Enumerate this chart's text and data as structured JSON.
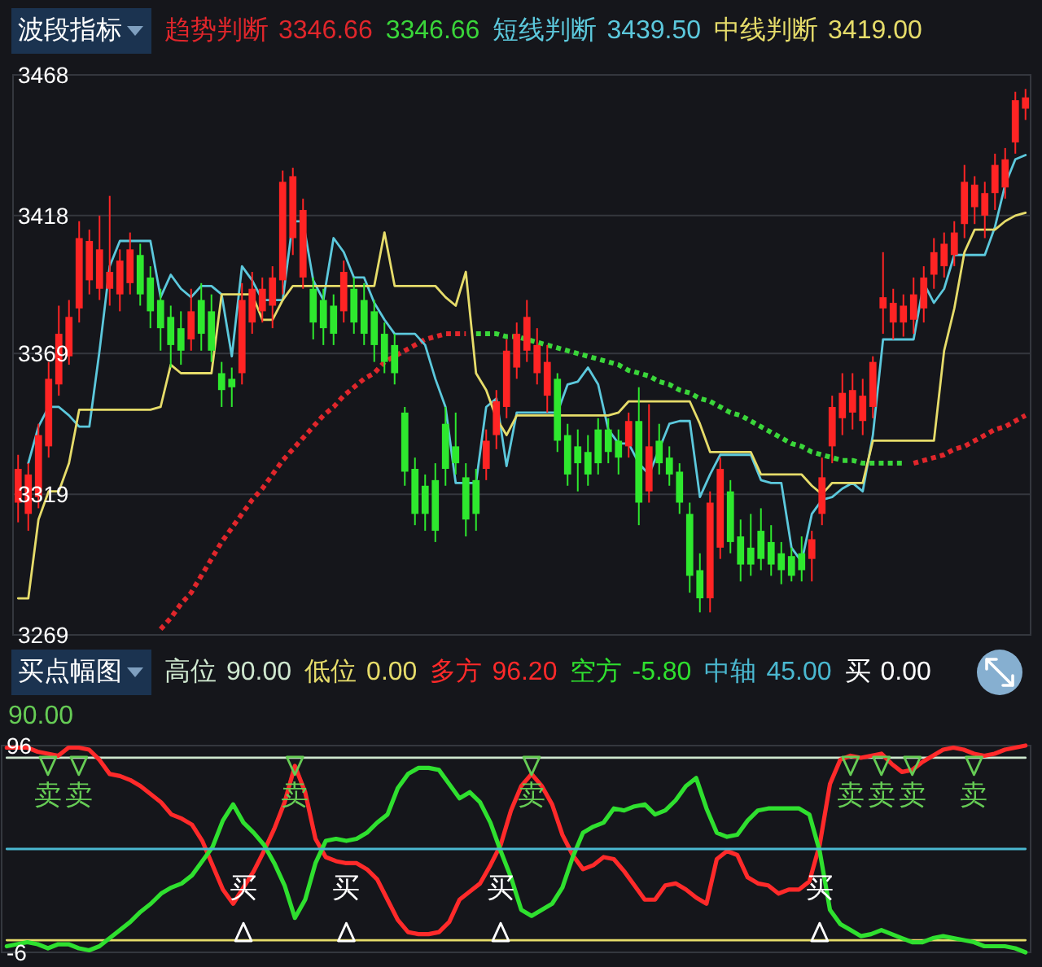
{
  "chart_data": [
    {
      "type": "candlestick",
      "title": "波段指标",
      "categories": [
        null,
        null,
        null,
        null,
        null,
        null,
        null,
        null,
        null,
        null,
        null,
        null,
        null,
        null,
        null,
        null,
        null,
        null,
        null,
        null,
        null,
        null,
        null,
        null,
        null,
        null,
        null,
        null,
        null,
        null,
        null,
        null,
        null,
        null,
        null,
        null,
        null,
        null,
        null,
        null,
        null,
        null,
        null,
        null,
        null,
        null,
        null,
        null,
        null,
        null,
        null,
        null,
        null,
        null,
        null,
        null,
        null,
        null,
        null,
        null,
        null,
        null,
        null,
        null,
        null,
        null,
        null,
        null,
        null,
        null,
        null,
        null,
        null,
        null,
        null,
        null,
        null,
        null,
        null,
        null,
        null,
        null,
        null,
        null,
        null,
        null,
        null,
        null,
        null,
        null,
        null,
        null,
        null,
        null,
        null,
        null,
        null,
        null,
        null,
        null
      ],
      "ohlc": [
        [
          3316,
          3333,
          3309,
          3328
        ],
        [
          3312,
          3330,
          3306,
          3326
        ],
        [
          3318,
          3344,
          3314,
          3340
        ],
        [
          3336,
          3366,
          3332,
          3360
        ],
        [
          3358,
          3386,
          3354,
          3376
        ],
        [
          3368,
          3388,
          3365,
          3382
        ],
        [
          3385,
          3416,
          3380,
          3410
        ],
        [
          3395,
          3413,
          3390,
          3409
        ],
        [
          3392,
          3418,
          3388,
          3406
        ],
        [
          3392,
          3425,
          3386,
          3398
        ],
        [
          3390,
          3406,
          3384,
          3402
        ],
        [
          3394,
          3412,
          3390,
          3406
        ],
        [
          3404,
          3408,
          3386,
          3390
        ],
        [
          3396,
          3400,
          3378,
          3384
        ],
        [
          3388,
          3392,
          3370,
          3378
        ],
        [
          3382,
          3386,
          3364,
          3372
        ],
        [
          3378,
          3384,
          3365,
          3370
        ],
        [
          3374,
          3392,
          3370,
          3384
        ],
        [
          3388,
          3394,
          3370,
          3376
        ],
        [
          3384,
          3390,
          3366,
          3370
        ],
        [
          3362,
          3366,
          3350,
          3356
        ],
        [
          3360,
          3364,
          3350,
          3357
        ],
        [
          3362,
          3394,
          3358,
          3388
        ],
        [
          3380,
          3398,
          3376,
          3392
        ],
        [
          3384,
          3396,
          3380,
          3392
        ],
        [
          3386,
          3400,
          3378,
          3396
        ],
        [
          3395,
          3434,
          3390,
          3430
        ],
        [
          3410,
          3435,
          3404,
          3432
        ],
        [
          3396,
          3424,
          3392,
          3420
        ],
        [
          3392,
          3396,
          3374,
          3380
        ],
        [
          3388,
          3392,
          3372,
          3378
        ],
        [
          3386,
          3390,
          3372,
          3376
        ],
        [
          3384,
          3402,
          3380,
          3398
        ],
        [
          3392,
          3396,
          3376,
          3380
        ],
        [
          3388,
          3394,
          3372,
          3376
        ],
        [
          3384,
          3388,
          3366,
          3372
        ],
        [
          3376,
          3380,
          3362,
          3366
        ],
        [
          3372,
          3376,
          3358,
          3362
        ],
        [
          3348,
          3350,
          3322,
          3327
        ],
        [
          3328,
          3332,
          3308,
          3312
        ],
        [
          3322,
          3326,
          3306,
          3312
        ],
        [
          3324,
          3330,
          3302,
          3306
        ],
        [
          3344,
          3350,
          3322,
          3328
        ],
        [
          3336,
          3348,
          3326,
          3330
        ],
        [
          3325,
          3330,
          3304,
          3310
        ],
        [
          3324,
          3328,
          3306,
          3312
        ],
        [
          3328,
          3342,
          3324,
          3338
        ],
        [
          3340,
          3356,
          3335,
          3352
        ],
        [
          3350,
          3374,
          3346,
          3370
        ],
        [
          3364,
          3380,
          3360,
          3376
        ],
        [
          3370,
          3388,
          3366,
          3382
        ],
        [
          3362,
          3378,
          3358,
          3372
        ],
        [
          3354,
          3372,
          3348,
          3366
        ],
        [
          3360,
          3362,
          3334,
          3338
        ],
        [
          3340,
          3344,
          3322,
          3326
        ],
        [
          3336,
          3342,
          3320,
          3330
        ],
        [
          3334,
          3340,
          3322,
          3326
        ],
        [
          3342,
          3346,
          3326,
          3330
        ],
        [
          3342,
          3346,
          3330,
          3334
        ],
        [
          3338,
          3342,
          3326,
          3332
        ],
        [
          3336,
          3348,
          3332,
          3345
        ],
        [
          3345,
          3357,
          3308,
          3316
        ],
        [
          3320,
          3351,
          3316,
          3336
        ],
        [
          3338,
          3344,
          3326,
          3330
        ],
        [
          3332,
          3336,
          3322,
          3326
        ],
        [
          3327,
          3330,
          3312,
          3316
        ],
        [
          3312,
          3316,
          3284,
          3290
        ],
        [
          3292,
          3298,
          3277,
          3282
        ],
        [
          3282,
          3320,
          3277,
          3316
        ],
        [
          3300,
          3332,
          3296,
          3328
        ],
        [
          3320,
          3324,
          3298,
          3302
        ],
        [
          3304,
          3310,
          3288,
          3294
        ],
        [
          3300,
          3312,
          3290,
          3294
        ],
        [
          3306,
          3314,
          3292,
          3296
        ],
        [
          3302,
          3308,
          3290,
          3294
        ],
        [
          3298,
          3302,
          3287,
          3292
        ],
        [
          3297,
          3300,
          3288,
          3290
        ],
        [
          3298,
          3304,
          3288,
          3292
        ],
        [
          3296,
          3306,
          3288,
          3303
        ],
        [
          3312,
          3332,
          3308,
          3325
        ],
        [
          3336,
          3354,
          3330,
          3350
        ],
        [
          3346,
          3362,
          3340,
          3355
        ],
        [
          3348,
          3362,
          3342,
          3356
        ],
        [
          3345,
          3360,
          3340,
          3354
        ],
        [
          3350,
          3368,
          3346,
          3366
        ],
        [
          3385,
          3405,
          3376,
          3389
        ],
        [
          3380,
          3392,
          3374,
          3387
        ],
        [
          3380,
          3390,
          3375,
          3386
        ],
        [
          3381,
          3396,
          3376,
          3390
        ],
        [
          3385,
          3400,
          3380,
          3396
        ],
        [
          3397,
          3410,
          3392,
          3405
        ],
        [
          3400,
          3412,
          3396,
          3408
        ],
        [
          3404,
          3416,
          3400,
          3412
        ],
        [
          3415,
          3436,
          3410,
          3430
        ],
        [
          3421,
          3432,
          3415,
          3429
        ],
        [
          3418,
          3430,
          3410,
          3426
        ],
        [
          3426,
          3440,
          3420,
          3436
        ],
        [
          3428,
          3442,
          3424,
          3438
        ],
        [
          3444,
          3462,
          3440,
          3459
        ],
        [
          3456,
          3463,
          3452,
          3460
        ]
      ],
      "colors": [
        "#ff2424",
        "#ff2424",
        "#ff2424",
        "#ff2424",
        "#ff2424",
        "#ff2424",
        "#ff2424",
        "#ff2424",
        "#ff2424",
        "#ff2424",
        "#ff2424",
        "#ff2424",
        "#2ee82e",
        "#2ee82e",
        "#2ee82e",
        "#2ee82e",
        "#2ee82e",
        "#ff2424",
        "#2ee82e",
        "#2ee82e",
        "#2ee82e",
        "#2ee82e",
        "#ff2424",
        "#ff2424",
        "#ff2424",
        "#ff2424",
        "#ff2424",
        "#ff2424",
        "#ff2424",
        "#2ee82e",
        "#2ee82e",
        "#2ee82e",
        "#ff2424",
        "#2ee82e",
        "#2ee82e",
        "#2ee82e",
        "#2ee82e",
        "#2ee82e",
        "#2ee82e",
        "#2ee82e",
        "#2ee82e",
        "#2ee82e",
        "#2ee82e",
        "#2ee82e",
        "#2ee82e",
        "#2ee82e",
        "#ff2424",
        "#ff2424",
        "#ff2424",
        "#ff2424",
        "#ff2424",
        "#ff2424",
        "#ff2424",
        "#2ee82e",
        "#2ee82e",
        "#2ee82e",
        "#2ee82e",
        "#2ee82e",
        "#2ee82e",
        "#2ee82e",
        "#ff2424",
        "#2ee82e",
        "#ff2424",
        "#2ee82e",
        "#2ee82e",
        "#2ee82e",
        "#2ee82e",
        "#2ee82e",
        "#ff2424",
        "#ff2424",
        "#2ee82e",
        "#2ee82e",
        "#2ee82e",
        "#2ee82e",
        "#2ee82e",
        "#2ee82e",
        "#2ee82e",
        "#2ee82e",
        "#ff2424",
        "#ff2424",
        "#ff2424",
        "#ff2424",
        "#ff2424",
        "#ff2424",
        "#ff2424",
        "#ff2424",
        "#ff2424",
        "#ff2424",
        "#ff2424",
        "#ff2424",
        "#ff2424",
        "#ff2424",
        "#ff2424",
        "#ff2424",
        "#ff2424",
        "#ff2424",
        "#ff2424",
        "#ff2424",
        "#ff2424",
        "#ff2424"
      ],
      "series": [
        {
          "name": "趋势判断",
          "type": "line",
          "line_style": "dotted",
          "color": "#e0262b",
          "values": [
            null,
            null,
            null,
            null,
            null,
            null,
            null,
            null,
            null,
            null,
            null,
            null,
            null,
            null,
            3271,
            3275,
            3280,
            3284,
            3290,
            3296,
            3302,
            3307,
            3312,
            3317,
            3321,
            3326,
            3331,
            3335,
            3339,
            3343,
            3347,
            3350,
            3354,
            3357,
            3360,
            3362,
            3366,
            3368,
            3370,
            3372,
            3374,
            3375,
            3376,
            3376,
            3376,
            null,
            null,
            null,
            null,
            null,
            null,
            null,
            null,
            null,
            null,
            null,
            null,
            null,
            null,
            null,
            null,
            null,
            null,
            null,
            null,
            null,
            null,
            null,
            null,
            null,
            null,
            null,
            null,
            null,
            null,
            null,
            null,
            null,
            null,
            null,
            null,
            null,
            null,
            null,
            null,
            null,
            null,
            null,
            3330,
            3331,
            3332,
            3333,
            3335,
            3336,
            3338,
            3340,
            3342,
            3343,
            3345,
            3347
          ]
        },
        {
          "type": "line",
          "line_style": "dotted",
          "color": "#3ad63a",
          "values": [
            null,
            null,
            null,
            null,
            null,
            null,
            null,
            null,
            null,
            null,
            null,
            null,
            null,
            null,
            null,
            null,
            null,
            null,
            null,
            null,
            null,
            null,
            null,
            null,
            null,
            null,
            null,
            null,
            null,
            null,
            null,
            null,
            null,
            null,
            null,
            null,
            null,
            null,
            null,
            null,
            null,
            null,
            null,
            null,
            null,
            3376,
            3376,
            3376,
            3375,
            3375,
            3374,
            3373,
            3372,
            3371,
            3370,
            3369,
            3368,
            3367,
            3366,
            3365,
            3363,
            3362,
            3361,
            3359,
            3358,
            3356,
            3355,
            3353,
            3352,
            3350,
            3348,
            3347,
            3345,
            3343,
            3341,
            3339,
            3337,
            3336,
            3334,
            3333,
            3332,
            3331,
            3331,
            3330,
            3330,
            3330,
            3330,
            3330,
            null,
            null,
            null,
            null,
            null,
            null,
            null,
            null,
            null,
            null,
            null,
            null
          ]
        },
        {
          "name": "短线判断",
          "type": "line",
          "color": "#5cc8dc",
          "values": [
            null,
            3330,
            3343,
            3350,
            3350,
            3347,
            3343,
            3343,
            3370,
            3400,
            3409,
            3409,
            3409,
            3409,
            3389,
            3397,
            3392,
            3389,
            3393,
            3393,
            3390,
            3368,
            3400,
            3395,
            3388,
            3388,
            3388,
            3416,
            3416,
            3395,
            3388,
            3410,
            3405,
            3396,
            3396,
            3387,
            3381,
            3376,
            3376,
            3376,
            3372,
            3360,
            3350,
            3323,
            3323,
            3323,
            3350,
            3353,
            3329,
            3348,
            3348,
            3348,
            3348,
            3348,
            3358,
            3359,
            3364,
            3358,
            3342,
            3337,
            3337,
            3330,
            3326,
            3335,
            3344,
            3345,
            3345,
            3318,
            3326,
            3333,
            3333,
            3333,
            3333,
            3324,
            3323,
            3323,
            3300,
            3295,
            3312,
            3317,
            3318,
            3321,
            3323,
            3320,
            3340,
            3374,
            3374,
            3374,
            3374,
            3394,
            3387,
            3392,
            3404,
            3404,
            3404,
            3404,
            3414,
            3429,
            3438,
            3439.5
          ]
        },
        {
          "name": "中线判断",
          "type": "line",
          "color": "#e6dc6a",
          "values": [
            3282,
            3282,
            3310,
            3320,
            3320,
            3330,
            3349,
            3349,
            3349,
            3349,
            3349,
            3349,
            3349,
            3349,
            3350,
            3365,
            3362,
            3362,
            3362,
            3362,
            3390,
            3390,
            3390,
            3390,
            3381,
            3381,
            3388,
            3393,
            3393,
            3393,
            3393,
            3393,
            3393,
            3393,
            3393,
            3393,
            3412,
            3393,
            3393,
            3393,
            3393,
            3393,
            3389,
            3386,
            3398,
            3362,
            3356,
            3346,
            3340,
            3347,
            3347,
            3347,
            3347,
            3347,
            3347,
            3347,
            3347,
            3347,
            3347,
            3348,
            3352,
            3352,
            3352,
            3352,
            3352,
            3352,
            3352,
            3344,
            3334,
            3334,
            3334,
            3334,
            3334,
            3326,
            3326,
            3326,
            3326,
            3326,
            3322,
            3319,
            3323,
            3323,
            3323,
            3323,
            3338,
            3338,
            3338,
            3338,
            3338,
            3338,
            3338,
            3370,
            3385,
            3405,
            3413,
            3413,
            3413,
            3416,
            3418,
            3419
          ]
        }
      ],
      "annotations": [
        "3346.66",
        "3346.66",
        "3439.50",
        "3419.00"
      ],
      "ylim": [
        3269,
        3468
      ],
      "yticks": [
        3269,
        3319,
        3369,
        3418,
        3468
      ],
      "grid": "y",
      "legend": "top"
    },
    {
      "type": "line",
      "title": "买点幅图",
      "categories": [
        null,
        null,
        null,
        null,
        null,
        null,
        null,
        null,
        null,
        null,
        null,
        null,
        null,
        null,
        null,
        null,
        null,
        null,
        null,
        null,
        null,
        null,
        null,
        null,
        null,
        null,
        null,
        null,
        null,
        null,
        null,
        null,
        null,
        null,
        null,
        null,
        null,
        null,
        null,
        null,
        null,
        null,
        null,
        null,
        null,
        null,
        null,
        null,
        null,
        null,
        null,
        null,
        null,
        null,
        null,
        null,
        null,
        null,
        null,
        null,
        null,
        null,
        null,
        null,
        null,
        null,
        null,
        null,
        null,
        null,
        null,
        null,
        null,
        null,
        null,
        null,
        null,
        null,
        null,
        null,
        null,
        null,
        null,
        null,
        null,
        null,
        null,
        null,
        null,
        null,
        null,
        null,
        null,
        null,
        null,
        null,
        null,
        null,
        null,
        null
      ],
      "series": [
        {
          "name": "高位",
          "color": "#cfe8cf",
          "values": [
            90,
            90,
            90,
            90,
            90,
            90,
            90,
            90,
            90,
            90,
            90,
            90,
            90,
            90,
            90,
            90,
            90,
            90,
            90,
            90,
            90,
            90,
            90,
            90,
            90,
            90,
            90,
            90,
            90,
            90,
            90,
            90,
            90,
            90,
            90,
            90,
            90,
            90,
            90,
            90,
            90,
            90,
            90,
            90,
            90,
            90,
            90,
            90,
            90,
            90,
            90,
            90,
            90,
            90,
            90,
            90,
            90,
            90,
            90,
            90,
            90,
            90,
            90,
            90,
            90,
            90,
            90,
            90,
            90,
            90,
            90,
            90,
            90,
            90,
            90,
            90,
            90,
            90,
            90,
            90,
            90,
            90,
            90,
            90,
            90,
            90,
            90,
            90,
            90,
            90,
            90,
            90,
            90,
            90,
            90,
            90,
            90,
            90,
            90,
            90
          ]
        },
        {
          "name": "低位",
          "color": "#e6dc6a",
          "values": [
            0,
            0,
            0,
            0,
            0,
            0,
            0,
            0,
            0,
            0,
            0,
            0,
            0,
            0,
            0,
            0,
            0,
            0,
            0,
            0,
            0,
            0,
            0,
            0,
            0,
            0,
            0,
            0,
            0,
            0,
            0,
            0,
            0,
            0,
            0,
            0,
            0,
            0,
            0,
            0,
            0,
            0,
            0,
            0,
            0,
            0,
            0,
            0,
            0,
            0,
            0,
            0,
            0,
            0,
            0,
            0,
            0,
            0,
            0,
            0,
            0,
            0,
            0,
            0,
            0,
            0,
            0,
            0,
            0,
            0,
            0,
            0,
            0,
            0,
            0,
            0,
            0,
            0,
            0,
            0,
            0,
            0,
            0,
            0,
            0,
            0,
            0,
            0,
            0,
            0,
            0,
            0,
            0,
            0,
            0,
            0,
            0,
            0,
            0,
            0
          ]
        },
        {
          "name": "多方",
          "color": "#ff2a2a",
          "values": [
            95,
            95,
            95,
            93,
            92,
            91,
            95,
            95,
            94,
            89,
            82,
            81,
            79,
            76,
            72,
            68,
            62,
            60,
            57,
            49,
            37,
            25,
            18,
            26,
            34,
            44,
            55,
            68,
            86,
            73,
            50,
            41,
            39,
            38,
            38,
            35,
            30,
            20,
            10,
            4,
            3,
            3,
            4,
            9,
            20,
            24,
            28,
            37,
            47,
            64,
            76,
            82,
            76,
            67,
            52,
            42,
            35,
            37,
            41,
            40,
            34,
            27,
            20,
            20,
            27,
            28,
            25,
            21,
            18,
            40,
            44,
            42,
            31,
            28,
            27,
            23,
            25,
            25,
            29,
            47,
            77,
            89,
            91,
            90,
            91,
            92,
            87,
            83,
            84,
            88,
            91,
            94,
            95,
            94,
            92,
            91,
            92,
            94,
            95,
            96
          ]
        },
        {
          "name": "空方",
          "color": "#2fe02f",
          "values": [
            -3,
            -2,
            -1,
            -2,
            -4,
            -2,
            -2,
            -4,
            -5,
            -3,
            1,
            5,
            9,
            14,
            18,
            23,
            26,
            28,
            32,
            39,
            46,
            59,
            67,
            58,
            53,
            47,
            38,
            27,
            11,
            20,
            38,
            49,
            50,
            49,
            50,
            53,
            58,
            62,
            75,
            82,
            85,
            85,
            84,
            77,
            70,
            73,
            68,
            58,
            44,
            31,
            15,
            12,
            15,
            18,
            26,
            41,
            53,
            56,
            58,
            65,
            64,
            66,
            67,
            62,
            64,
            69,
            76,
            80,
            65,
            53,
            51,
            52,
            59,
            64,
            65,
            65,
            65,
            65,
            62,
            44,
            15,
            8,
            5,
            2,
            3,
            5,
            3,
            1,
            -1,
            -1,
            1,
            2,
            1,
            0,
            -1,
            -3,
            -3,
            -3,
            -4,
            -6
          ]
        },
        {
          "name": "中轴",
          "color": "#4ab8d0",
          "values": [
            45,
            45,
            45,
            45,
            45,
            45,
            45,
            45,
            45,
            45,
            45,
            45,
            45,
            45,
            45,
            45,
            45,
            45,
            45,
            45,
            45,
            45,
            45,
            45,
            45,
            45,
            45,
            45,
            45,
            45,
            45,
            45,
            45,
            45,
            45,
            45,
            45,
            45,
            45,
            45,
            45,
            45,
            45,
            45,
            45,
            45,
            45,
            45,
            45,
            45,
            45,
            45,
            45,
            45,
            45,
            45,
            45,
            45,
            45,
            45,
            45,
            45,
            45,
            45,
            45,
            45,
            45,
            45,
            45,
            45,
            45,
            45,
            45,
            45,
            45,
            45,
            45,
            45,
            45,
            45,
            45,
            45,
            45,
            45,
            45,
            45,
            45,
            45,
            45,
            45,
            45,
            45,
            45,
            45,
            45,
            45,
            45,
            45,
            45,
            45
          ]
        },
        {
          "name": "买",
          "type": "scatter",
          "marker": "triangle",
          "color": "#ffffff",
          "values": [
            null,
            null,
            null,
            null,
            null,
            null,
            null,
            null,
            null,
            null,
            null,
            null,
            null,
            null,
            null,
            null,
            null,
            null,
            null,
            null,
            null,
            null,
            null,
            4,
            null,
            null,
            null,
            null,
            null,
            null,
            null,
            null,
            null,
            4,
            null,
            null,
            null,
            null,
            null,
            null,
            null,
            null,
            null,
            null,
            null,
            null,
            null,
            null,
            4,
            null,
            null,
            null,
            null,
            null,
            null,
            null,
            null,
            null,
            null,
            null,
            null,
            null,
            null,
            null,
            null,
            null,
            null,
            null,
            null,
            null,
            null,
            null,
            null,
            null,
            null,
            null,
            null,
            null,
            null,
            4,
            null,
            null,
            null,
            null,
            null,
            null,
            null,
            null,
            null,
            null,
            null,
            null,
            null,
            null,
            null,
            null,
            null,
            null,
            null,
            null
          ],
          "value_labels": [
            null,
            null,
            null,
            null,
            null,
            null,
            null,
            null,
            null,
            null,
            null,
            null,
            null,
            null,
            null,
            null,
            null,
            null,
            null,
            null,
            null,
            null,
            null,
            "买",
            null,
            null,
            null,
            null,
            null,
            null,
            null,
            null,
            null,
            "买",
            null,
            null,
            null,
            null,
            null,
            null,
            null,
            null,
            null,
            null,
            null,
            null,
            null,
            null,
            "买",
            null,
            null,
            null,
            null,
            null,
            null,
            null,
            null,
            null,
            null,
            null,
            null,
            null,
            null,
            null,
            null,
            null,
            null,
            null,
            null,
            null,
            null,
            null,
            null,
            null,
            null,
            null,
            null,
            null,
            null,
            "买",
            null,
            null,
            null,
            null,
            null,
            null,
            null,
            null,
            null,
            null,
            null,
            null,
            null,
            null,
            null,
            null,
            null,
            null,
            null,
            null
          ]
        },
        {
          "type": "scatter",
          "marker": "triangle",
          "color": "#66cc55",
          "values": [
            null,
            null,
            null,
            null,
            86,
            null,
            null,
            86,
            null,
            null,
            null,
            null,
            null,
            null,
            null,
            null,
            null,
            null,
            null,
            null,
            null,
            null,
            null,
            null,
            null,
            null,
            null,
            null,
            86,
            null,
            null,
            null,
            null,
            null,
            null,
            null,
            null,
            null,
            null,
            null,
            null,
            null,
            null,
            null,
            null,
            null,
            null,
            null,
            null,
            null,
            null,
            86,
            null,
            null,
            null,
            null,
            null,
            null,
            null,
            null,
            null,
            null,
            null,
            null,
            null,
            null,
            null,
            null,
            null,
            null,
            null,
            null,
            null,
            null,
            null,
            null,
            null,
            null,
            null,
            null,
            null,
            null,
            86,
            null,
            null,
            86,
            null,
            null,
            86,
            null,
            null,
            null,
            null,
            null,
            86,
            null,
            null,
            null,
            null,
            null
          ],
          "value_labels": [
            null,
            null,
            null,
            null,
            "卖",
            null,
            null,
            "卖",
            null,
            null,
            null,
            null,
            null,
            null,
            null,
            null,
            null,
            null,
            null,
            null,
            null,
            null,
            null,
            null,
            null,
            null,
            null,
            null,
            "卖",
            null,
            null,
            null,
            null,
            null,
            null,
            null,
            null,
            null,
            null,
            null,
            null,
            null,
            null,
            null,
            null,
            null,
            null,
            null,
            null,
            null,
            null,
            "卖",
            null,
            null,
            null,
            null,
            null,
            null,
            null,
            null,
            null,
            null,
            null,
            null,
            null,
            null,
            null,
            null,
            null,
            null,
            null,
            null,
            null,
            null,
            null,
            null,
            null,
            null,
            null,
            null,
            null,
            null,
            "卖",
            null,
            null,
            "卖",
            null,
            null,
            "卖",
            null,
            null,
            null,
            null,
            null,
            "卖",
            null,
            null,
            null,
            null,
            null
          ]
        }
      ],
      "annotations": [
        "90.00",
        "0.00",
        "96.20",
        "-5.80",
        "45.00",
        "0.00",
        "90.00"
      ],
      "ylim": [
        -6,
        96
      ],
      "yticks": [
        -6,
        96
      ],
      "legend": "top"
    }
  ]
}
